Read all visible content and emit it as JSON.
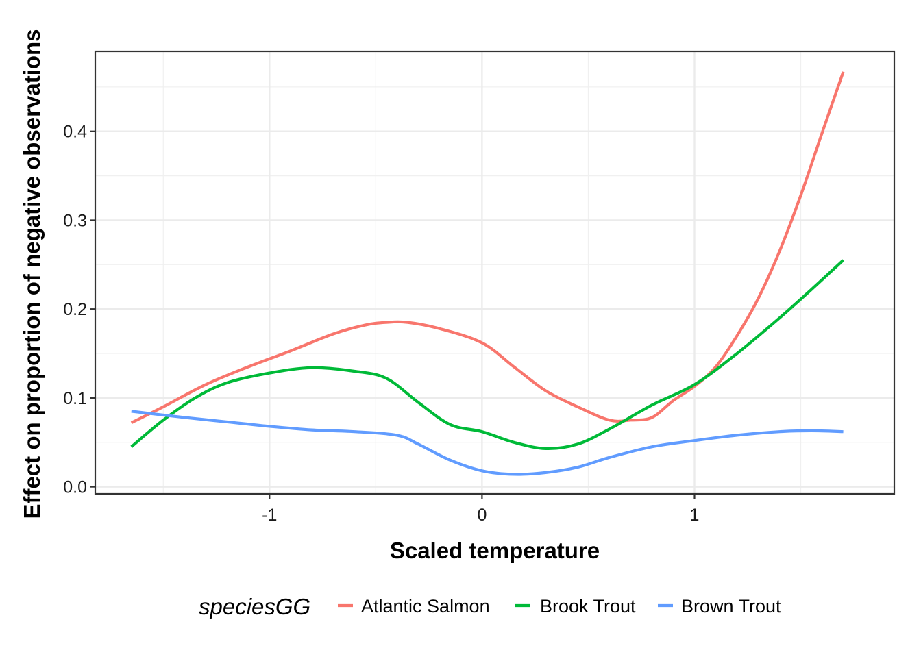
{
  "chart_data": {
    "type": "line",
    "xlabel": "Scaled temperature",
    "ylabel": "Effect on proportion of negative observations",
    "xlim": [
      -1.82,
      1.94
    ],
    "ylim": [
      -0.008,
      0.49
    ],
    "x_ticks": [
      -1,
      0,
      1
    ],
    "x_tick_labels": [
      "-1",
      "0",
      "1"
    ],
    "y_ticks": [
      0.0,
      0.1,
      0.2,
      0.3,
      0.4
    ],
    "y_tick_labels": [
      "0.0",
      "0.1",
      "0.2",
      "0.3",
      "0.4"
    ],
    "grid": true,
    "legend": {
      "title": "speciesGG",
      "position": "bottom"
    },
    "series": [
      {
        "name": "Atlantic Salmon",
        "color": "#F8766D",
        "x": [
          -1.65,
          -1.5,
          -1.3,
          -1.1,
          -0.9,
          -0.7,
          -0.55,
          -0.45,
          -0.35,
          -0.2,
          0.0,
          0.15,
          0.3,
          0.45,
          0.6,
          0.7,
          0.8,
          0.9,
          1.0,
          1.1,
          1.2,
          1.3,
          1.4,
          1.5,
          1.6,
          1.7
        ],
        "y": [
          0.072,
          0.09,
          0.115,
          0.135,
          0.153,
          0.172,
          0.182,
          0.185,
          0.185,
          0.178,
          0.162,
          0.135,
          0.108,
          0.09,
          0.075,
          0.075,
          0.078,
          0.097,
          0.113,
          0.135,
          0.17,
          0.212,
          0.265,
          0.328,
          0.398,
          0.467
        ]
      },
      {
        "name": "Brook Trout",
        "color": "#00BA38",
        "x": [
          -1.65,
          -1.5,
          -1.35,
          -1.2,
          -1.0,
          -0.8,
          -0.6,
          -0.45,
          -0.3,
          -0.15,
          0.0,
          0.15,
          0.3,
          0.45,
          0.6,
          0.8,
          1.0,
          1.2,
          1.4,
          1.55,
          1.7
        ],
        "y": [
          0.045,
          0.075,
          0.1,
          0.117,
          0.128,
          0.134,
          0.13,
          0.122,
          0.095,
          0.07,
          0.062,
          0.05,
          0.043,
          0.048,
          0.065,
          0.092,
          0.115,
          0.15,
          0.19,
          0.222,
          0.255
        ]
      },
      {
        "name": "Brown Trout",
        "color": "#619CFF",
        "x": [
          -1.65,
          -1.4,
          -1.2,
          -1.0,
          -0.8,
          -0.6,
          -0.4,
          -0.3,
          -0.15,
          0.0,
          0.15,
          0.3,
          0.45,
          0.6,
          0.8,
          1.0,
          1.2,
          1.4,
          1.55,
          1.7
        ],
        "y": [
          0.085,
          0.078,
          0.073,
          0.068,
          0.064,
          0.062,
          0.058,
          0.048,
          0.03,
          0.018,
          0.014,
          0.016,
          0.022,
          0.033,
          0.045,
          0.052,
          0.058,
          0.062,
          0.063,
          0.062
        ]
      }
    ]
  }
}
